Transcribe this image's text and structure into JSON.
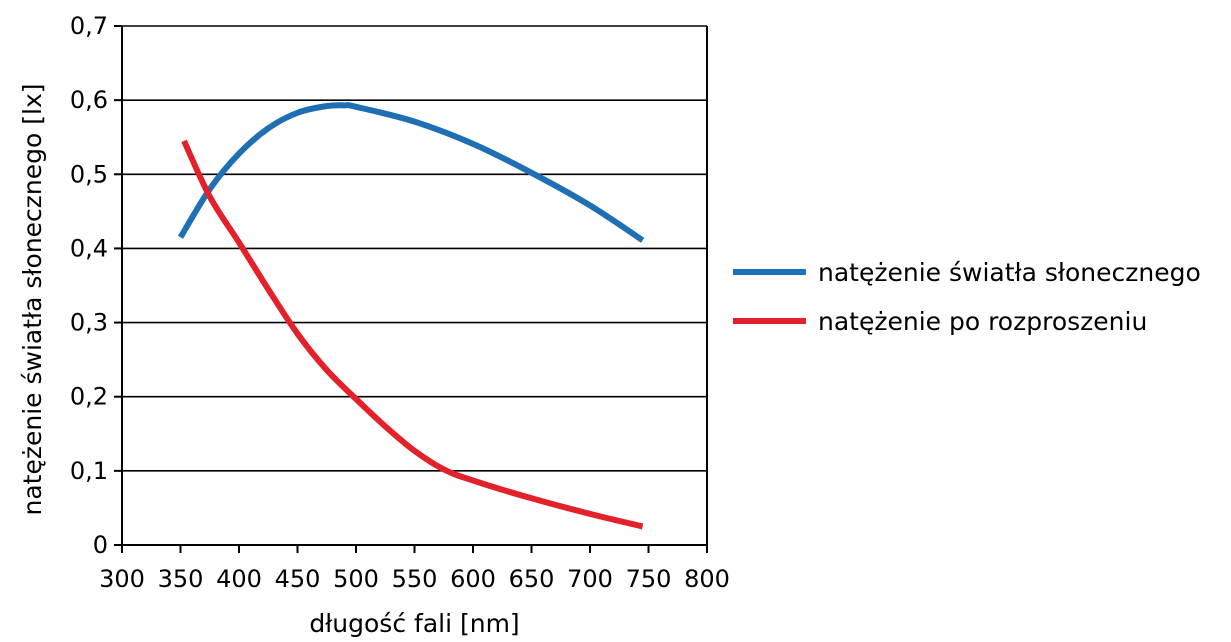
{
  "chart_data": {
    "type": "line",
    "title": "",
    "xlabel": "długość fali [nm]",
    "ylabel": "natężenie światła słonecznego [lx]",
    "xlim": [
      300,
      800
    ],
    "ylim": [
      0,
      0.7
    ],
    "xticks": [
      300,
      350,
      400,
      450,
      500,
      550,
      600,
      650,
      700,
      750,
      800
    ],
    "xtick_labels": [
      "300",
      "350",
      "400",
      "450",
      "500",
      "550",
      "600",
      "650",
      "700",
      "750",
      "800"
    ],
    "yticks": [
      0,
      0.1,
      0.2,
      0.3,
      0.4,
      0.5,
      0.6,
      0.7
    ],
    "ytick_labels": [
      "0",
      "0,1",
      "0,2",
      "0,3",
      "0,4",
      "0,5",
      "0,6",
      "0,7"
    ],
    "grid": "horizontal",
    "legend_position": "right",
    "series": [
      {
        "name": "natężenie światła słonecznego",
        "color": "#1f6fb4",
        "x": [
          350,
          375,
          400,
          425,
          450,
          475,
          490,
          500,
          550,
          600,
          650,
          700,
          745
        ],
        "y": [
          0.415,
          0.48,
          0.528,
          0.562,
          0.583,
          0.592,
          0.593,
          0.591,
          0.571,
          0.541,
          0.502,
          0.458,
          0.411
        ]
      },
      {
        "name": "natężenie po rozproszeniu",
        "color": "#e3212b",
        "x": [
          353,
          375,
          400,
          425,
          450,
          475,
          500,
          525,
          550,
          575,
          600,
          650,
          700,
          745
        ],
        "y": [
          0.545,
          0.47,
          0.408,
          0.345,
          0.285,
          0.236,
          0.197,
          0.16,
          0.127,
          0.102,
          0.087,
          0.063,
          0.042,
          0.025
        ]
      }
    ]
  }
}
